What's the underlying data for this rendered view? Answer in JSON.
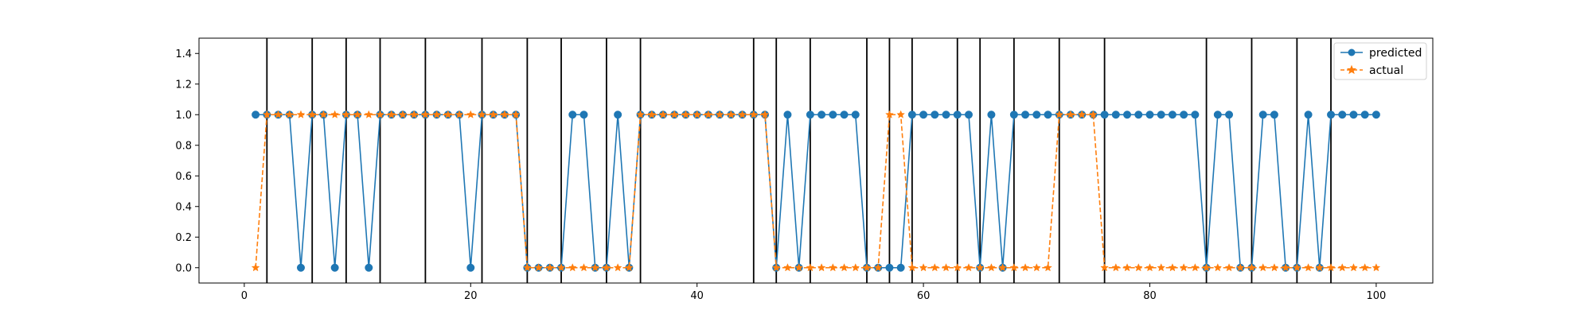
{
  "chart_data": {
    "type": "line",
    "title": "",
    "xlabel": "",
    "ylabel": "",
    "xlim": [
      -4,
      105
    ],
    "ylim": [
      -0.1,
      1.5
    ],
    "x_ticks": [
      0,
      20,
      40,
      60,
      80,
      100
    ],
    "y_ticks": [
      0.0,
      0.2,
      0.4,
      0.6,
      0.8,
      1.0,
      1.2,
      1.4
    ],
    "x_tick_labels": [
      "0",
      "20",
      "40",
      "60",
      "80",
      "100"
    ],
    "y_tick_labels": [
      "0.0",
      "0.2",
      "0.4",
      "0.6",
      "0.8",
      "1.0",
      "1.2",
      "1.4"
    ],
    "grid": false,
    "legend_position": "upper right",
    "x": [
      1,
      2,
      3,
      4,
      5,
      6,
      7,
      8,
      9,
      10,
      11,
      12,
      13,
      14,
      15,
      16,
      17,
      18,
      19,
      20,
      21,
      22,
      23,
      24,
      25,
      26,
      27,
      28,
      29,
      30,
      31,
      32,
      33,
      34,
      35,
      36,
      37,
      38,
      39,
      40,
      41,
      42,
      43,
      44,
      45,
      46,
      47,
      48,
      49,
      50,
      51,
      52,
      53,
      54,
      55,
      56,
      57,
      58,
      59,
      60,
      61,
      62,
      63,
      64,
      65,
      66,
      67,
      68,
      69,
      70,
      71,
      72,
      73,
      74,
      75,
      76,
      77,
      78,
      79,
      80,
      81,
      82,
      83,
      84,
      85,
      86,
      87,
      88,
      89,
      90,
      91,
      92,
      93,
      94,
      95,
      96,
      97,
      98,
      99,
      100
    ],
    "vertical_lines": [
      2,
      6,
      9,
      12,
      16,
      21,
      25,
      28,
      32,
      35,
      45,
      47,
      50,
      55,
      57,
      59,
      63,
      65,
      68,
      72,
      76,
      85,
      89,
      93,
      96
    ],
    "series": [
      {
        "name": "predicted",
        "color": "#1f77b4",
        "linestyle": "solid",
        "marker": "circle",
        "values": [
          1,
          1,
          1,
          1,
          0,
          1,
          1,
          0,
          1,
          1,
          0,
          1,
          1,
          1,
          1,
          1,
          1,
          1,
          1,
          0,
          1,
          1,
          1,
          1,
          0,
          0,
          0,
          0,
          1,
          1,
          0,
          0,
          1,
          0,
          1,
          1,
          1,
          1,
          1,
          1,
          1,
          1,
          1,
          1,
          1,
          1,
          0,
          1,
          0,
          1,
          1,
          1,
          1,
          1,
          0,
          0,
          0,
          0,
          1,
          1,
          1,
          1,
          1,
          1,
          0,
          1,
          0,
          1,
          1,
          1,
          1,
          1,
          1,
          1,
          1,
          1,
          1,
          1,
          1,
          1,
          1,
          1,
          1,
          1,
          0,
          1,
          1,
          0,
          0,
          1,
          1,
          0,
          0,
          1,
          0,
          1,
          1,
          1,
          1,
          1
        ]
      },
      {
        "name": "actual",
        "color": "#ff7f0e",
        "linestyle": "dashed",
        "marker": "star",
        "values": [
          0,
          1,
          1,
          1,
          1,
          1,
          1,
          1,
          1,
          1,
          1,
          1,
          1,
          1,
          1,
          1,
          1,
          1,
          1,
          1,
          1,
          1,
          1,
          1,
          0,
          0,
          0,
          0,
          0,
          0,
          0,
          0,
          0,
          0,
          1,
          1,
          1,
          1,
          1,
          1,
          1,
          1,
          1,
          1,
          1,
          1,
          0,
          0,
          0,
          0,
          0,
          0,
          0,
          0,
          0,
          0,
          1,
          1,
          0,
          0,
          0,
          0,
          0,
          0,
          0,
          0,
          0,
          0,
          0,
          0,
          0,
          1,
          1,
          1,
          1,
          0,
          0,
          0,
          0,
          0,
          0,
          0,
          0,
          0,
          0,
          0,
          0,
          0,
          0,
          0,
          0,
          0,
          0,
          0,
          0,
          0,
          0,
          0,
          0,
          0
        ]
      }
    ]
  }
}
